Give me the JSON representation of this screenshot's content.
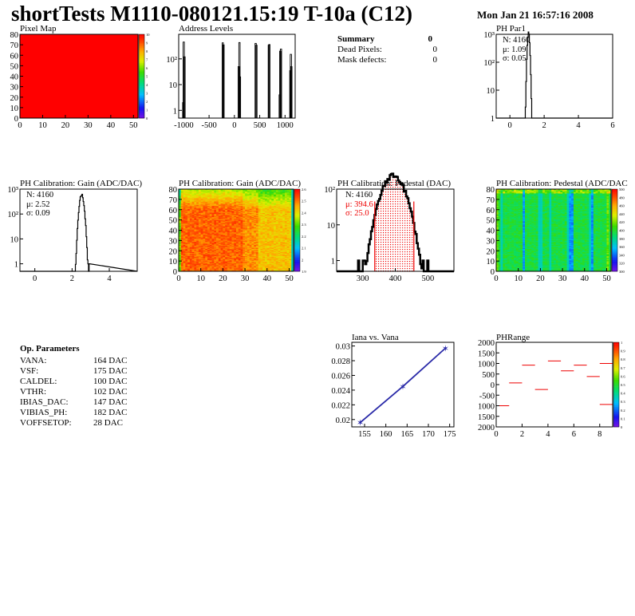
{
  "header": {
    "title": "shortTests M1110-080121.15:19 T-10a (C12)",
    "date": "Mon Jan 21 16:57:16 2008"
  },
  "summary": {
    "title": "Summary",
    "total": "0",
    "rows": [
      {
        "label": "Dead Pixels:",
        "value": "0"
      },
      {
        "label": "Mask defects:",
        "value": "0"
      }
    ]
  },
  "op_params": {
    "title": "Op. Parameters",
    "rows": [
      {
        "label": "VANA:",
        "value": "164 DAC"
      },
      {
        "label": "VSF:",
        "value": "175 DAC"
      },
      {
        "label": "CALDEL:",
        "value": "100 DAC"
      },
      {
        "label": "VTHR:",
        "value": "102 DAC"
      },
      {
        "label": "IBIAS_DAC:",
        "value": "147 DAC"
      },
      {
        "label": "VIBIAS_PH:",
        "value": "182 DAC"
      },
      {
        "label": "VOFFSETOP:",
        "value": "28 DAC"
      }
    ]
  },
  "colors": {
    "hist_line": "#000000",
    "fit_red": "#ee0000",
    "graph_blue": "#2a2aa8"
  },
  "chart_data": [
    {
      "id": "pixel-map",
      "type": "heatmap",
      "title": "Pixel Map",
      "xlim": [
        0,
        52
      ],
      "ylim": [
        0,
        80
      ],
      "xticks": [
        0,
        10,
        20,
        30,
        40,
        50
      ],
      "yticks": [
        0,
        10,
        20,
        30,
        40,
        50,
        60,
        70,
        80
      ],
      "zlim": [
        0,
        10
      ],
      "zticks": [
        0,
        1,
        2,
        3,
        4,
        5,
        6,
        7,
        8,
        9,
        10
      ],
      "uniform_value": 10
    },
    {
      "id": "address-levels",
      "type": "bar",
      "title": "Address Levels",
      "log_y": true,
      "xlim": [
        -1100,
        1200
      ],
      "ylim": [
        0.5,
        900
      ],
      "xticks": [
        -1000,
        -500,
        0,
        500,
        1000
      ],
      "yticks": [
        "1",
        "10",
        "10²"
      ],
      "peaks": [
        {
          "x": -1000,
          "h": 450
        },
        {
          "x": -985,
          "h": 120
        },
        {
          "x": -1010,
          "h": 2
        },
        {
          "x": -230,
          "h": 420
        },
        {
          "x": -215,
          "h": 350
        },
        {
          "x": 85,
          "h": 50
        },
        {
          "x": 100,
          "h": 430
        },
        {
          "x": 110,
          "h": 20
        },
        {
          "x": 420,
          "h": 400
        },
        {
          "x": 435,
          "h": 340
        },
        {
          "x": 680,
          "h": 340
        },
        {
          "x": 690,
          "h": 360
        },
        {
          "x": 905,
          "h": 200
        },
        {
          "x": 920,
          "h": 240
        },
        {
          "x": 895,
          "h": 4
        },
        {
          "x": 1115,
          "h": 150
        },
        {
          "x": 1125,
          "h": 50
        },
        {
          "x": 1105,
          "h": 35
        }
      ]
    },
    {
      "id": "ph-par1",
      "type": "histogram",
      "title": "PH Par1",
      "log_y": true,
      "xlim": [
        -0.8,
        6
      ],
      "ylim": [
        1,
        1000
      ],
      "xticks": [
        0,
        2,
        4,
        6
      ],
      "yticks": [
        "1",
        "10",
        "10²",
        "10³"
      ],
      "stats": {
        "N": "N: 4160",
        "mean": "μ: 1.09",
        "sigma": "σ: 0.05"
      },
      "N": 4160,
      "mean": 1.09,
      "sigma": 0.05,
      "binw": 0.034
    },
    {
      "id": "gain-hist",
      "type": "histogram",
      "title": "PH Calibration: Gain (ADC/DAC)",
      "log_y": true,
      "xlim": [
        -0.8,
        5.5
      ],
      "ylim": [
        0.5,
        1000
      ],
      "xticks": [
        0,
        2,
        4
      ],
      "yticks": [
        "1",
        "10",
        "10²",
        "10³"
      ],
      "stats": {
        "N": "N: 4160",
        "mean": "μ: 2.52",
        "sigma": "σ: 0.09"
      },
      "N": 4160,
      "mean": 2.52,
      "sigma": 0.09,
      "binw": 0.032
    },
    {
      "id": "gain-map",
      "type": "heatmap",
      "title": "PH Calibration: Gain (ADC/DAC)",
      "xlim": [
        0,
        52
      ],
      "ylim": [
        0,
        80
      ],
      "xticks": [
        0,
        10,
        20,
        30,
        40,
        50
      ],
      "yticks": [
        0,
        10,
        20,
        30,
        40,
        50,
        60,
        70,
        80
      ],
      "zlim": [
        1.9,
        2.7
      ],
      "zticks": [
        "1.9",
        "2",
        "2.1",
        "2.2",
        "2.3",
        "2.4",
        "2.5",
        "2.6"
      ]
    },
    {
      "id": "pedestal-hist",
      "type": "histogram",
      "title": "PH Calibration: Pedestal (DAC)",
      "log_y": true,
      "xlim": [
        220,
        580
      ],
      "ylim": [
        0.5,
        100
      ],
      "xticks": [
        300,
        400,
        500
      ],
      "yticks": [
        "1",
        "10",
        "10²"
      ],
      "stats": {
        "N": "N: 4160",
        "mean": "μ: 394.6",
        "sigma": "σ: 25.0"
      },
      "N": 4160,
      "mean": 394.6,
      "sigma": 25.0,
      "binw": 3.6,
      "fit_range": [
        337,
        457
      ]
    },
    {
      "id": "pedestal-map",
      "type": "heatmap",
      "title": "PH Calibration: Pedestal (ADC/DAC",
      "xlim": [
        0,
        52
      ],
      "ylim": [
        0,
        80
      ],
      "xticks": [
        0,
        10,
        20,
        30,
        40,
        50
      ],
      "yticks": [
        0,
        10,
        20,
        30,
        40,
        50,
        60,
        70,
        80
      ],
      "zlim": [
        300,
        520
      ],
      "zticks": [
        "300",
        "320",
        "340",
        "360",
        "380",
        "400",
        "420",
        "440",
        "460",
        "480",
        "500"
      ]
    },
    {
      "id": "iana-vana",
      "type": "line",
      "title": "Iana vs. Vana",
      "xlim": [
        152,
        176
      ],
      "ylim": [
        0.019,
        0.0305
      ],
      "xticks": [
        155,
        160,
        165,
        170,
        175
      ],
      "yticks": [
        "0.02",
        "0.022",
        "0.024",
        "0.026",
        "0.028",
        "0.03"
      ],
      "x": [
        154,
        164,
        174
      ],
      "y": [
        0.0196,
        0.0245,
        0.0297
      ]
    },
    {
      "id": "ph-range",
      "type": "heatmap",
      "title": "PHRange",
      "xlim": [
        0,
        9
      ],
      "ylim": [
        -2000,
        2000
      ],
      "xticks": [
        0,
        2,
        4,
        6,
        8
      ],
      "yticks": [
        "2000",
        "1500",
        "1000",
        "500",
        "0",
        "-500",
        "1000",
        "1500",
        "2000"
      ],
      "zlim": [
        0,
        1
      ],
      "zticks": [
        "0",
        "0.1",
        "0.2",
        "0.3",
        "0.4",
        "0.5",
        "0.6",
        "0.7",
        "0.8",
        "0.9",
        "1"
      ],
      "segments": [
        {
          "x": 0,
          "y": -1000
        },
        {
          "x": 1,
          "y": 80
        },
        {
          "x": 2,
          "y": 920
        },
        {
          "x": 3,
          "y": -230
        },
        {
          "x": 4,
          "y": 1120
        },
        {
          "x": 5,
          "y": 650
        },
        {
          "x": 6,
          "y": 920
        },
        {
          "x": 7,
          "y": 380
        },
        {
          "x": 8,
          "y": 1000
        },
        {
          "x": 8,
          "y": -940
        }
      ]
    }
  ]
}
